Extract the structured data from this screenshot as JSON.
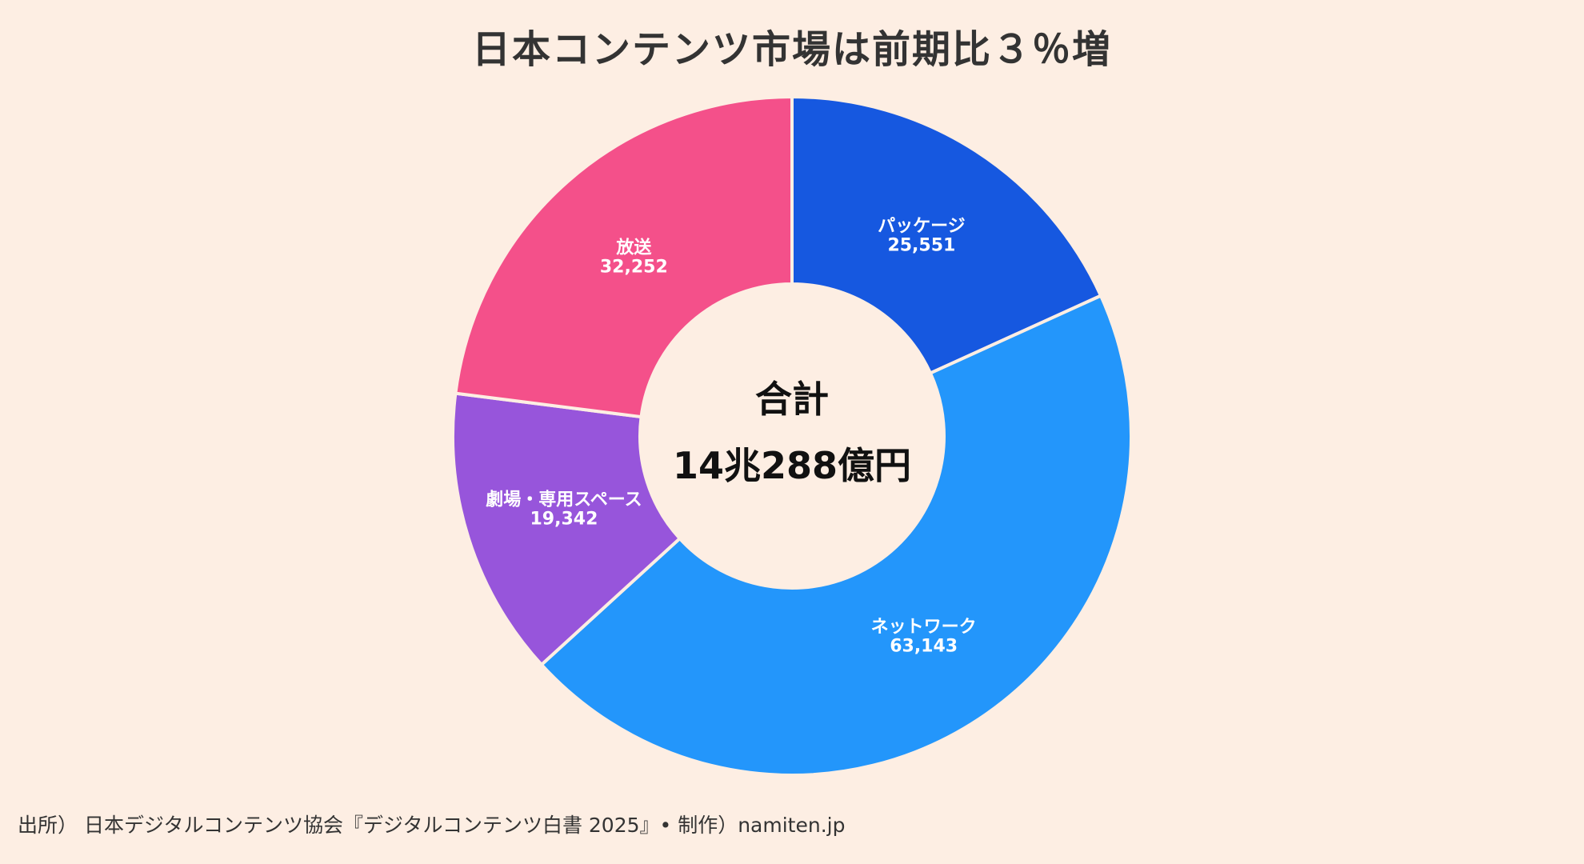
{
  "title": "日本コンテンツ市場は前期比３％増",
  "footer": "出所） 日本デジタルコンテンツ協会『デジタルコンテンツ白書 2025』• 制作）namiten.jp",
  "chart_data": {
    "type": "pie",
    "donut": true,
    "center_label": "合計",
    "center_value": "14兆288億円",
    "start_angle_deg": 0,
    "direction": "clockwise",
    "slices": [
      {
        "label": "パッケージ",
        "value": 25551,
        "value_text": "25,551",
        "color": "#1658e0"
      },
      {
        "label": "ネットワーク",
        "value": 63143,
        "value_text": "63,143",
        "color": "#2396fb"
      },
      {
        "label": "劇場・専用スペース",
        "value": 19342,
        "value_text": "19,342",
        "color": "#9755db"
      },
      {
        "label": "放送",
        "value": 32252,
        "value_text": "32,252",
        "color": "#f4508a"
      }
    ]
  }
}
